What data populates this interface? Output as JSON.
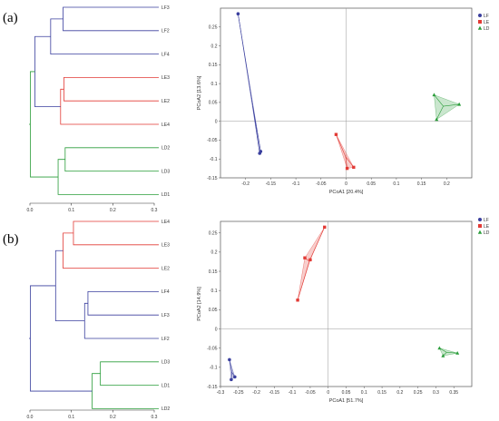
{
  "panels": [
    {
      "label": "(a)",
      "dendrogram": {
        "ticks": [
          "0.0",
          "0.1",
          "0.2",
          "0.3"
        ],
        "tick_values": [
          0.0,
          0.1,
          0.2,
          0.3
        ],
        "leaves": [
          "LF3",
          "LF2",
          "LF4",
          "LE3",
          "LE2",
          "LE4",
          "LD2",
          "LD3",
          "LD1"
        ],
        "merges": [
          {
            "a": "LF3",
            "b": "LF2",
            "h": 0.08,
            "group": "LF",
            "id": "F1"
          },
          {
            "a": "F1",
            "b": "LF4",
            "h": 0.05,
            "group": "LF",
            "id": "F2"
          },
          {
            "a": "LE3",
            "b": "LE2",
            "h": 0.082,
            "group": "LE",
            "id": "E1"
          },
          {
            "a": "E1",
            "b": "LE4",
            "h": 0.074,
            "group": "LE",
            "id": "E2"
          },
          {
            "a": "LD2",
            "b": "LD3",
            "h": 0.085,
            "group": "LD",
            "id": "D1"
          },
          {
            "a": "D1",
            "b": "LD1",
            "h": 0.068,
            "group": "LD",
            "id": "D2"
          },
          {
            "a": "F2",
            "b": "E2",
            "h": 0.012,
            "group": "LF",
            "id": "FE"
          },
          {
            "a": "FE",
            "b": "D2",
            "h": 0.001,
            "group": "LD",
            "id": "ALL"
          }
        ]
      },
      "chart_data": {
        "type": "scatter",
        "xlabel": "PCoA1 [20.4%]",
        "ylabel": "PCoA2 [13.6%]",
        "xlim": [
          -0.25,
          0.25
        ],
        "ylim": [
          -0.15,
          0.3
        ],
        "xticks": [
          -0.2,
          -0.15,
          -0.1,
          -0.05,
          0,
          0.05,
          0.1,
          0.15,
          0.2
        ],
        "xtick_labels": [
          "-0.2",
          "-0.15",
          "-0.1",
          "-0.05",
          "0",
          "0.05",
          "0.1",
          "0.15",
          "0.2"
        ],
        "yticks": [
          -0.15,
          -0.1,
          -0.05,
          0,
          0.05,
          0.1,
          0.15,
          0.2,
          0.25
        ],
        "ytick_labels": [
          "-0.15",
          "-0.1",
          "-0.05",
          "0",
          "0.05",
          "0.1",
          "0.15",
          "0.2",
          "0.25"
        ],
        "grid": false,
        "legend_placement": "top-right",
        "series": [
          {
            "name": "LF",
            "marker": "circle",
            "color": "#3a3f9e",
            "points": [
              [
                -0.215,
                0.285
              ],
              [
                -0.172,
                -0.085
              ],
              [
                -0.17,
                -0.08
              ]
            ]
          },
          {
            "name": "LE",
            "marker": "square",
            "color": "#e23a35",
            "points": [
              [
                -0.02,
                -0.035
              ],
              [
                0.002,
                -0.125
              ],
              [
                0.015,
                -0.122
              ]
            ]
          },
          {
            "name": "LD",
            "marker": "triangle",
            "color": "#2a9d3a",
            "points": [
              [
                0.175,
                0.07
              ],
              [
                0.225,
                0.045
              ],
              [
                0.18,
                0.005
              ]
            ]
          }
        ]
      }
    },
    {
      "label": "(b)",
      "dendrogram": {
        "ticks": [
          "0.0",
          "0.1",
          "0.2",
          "0.3"
        ],
        "tick_values": [
          0.0,
          0.1,
          0.2,
          0.3
        ],
        "leaves": [
          "LE4",
          "LE3",
          "LE2",
          "LF4",
          "LF3",
          "LF2",
          "LD3",
          "LD1",
          "LD2"
        ],
        "merges": [
          {
            "a": "LE4",
            "b": "LE3",
            "h": 0.105,
            "group": "LE",
            "id": "E1"
          },
          {
            "a": "E1",
            "b": "LE2",
            "h": 0.08,
            "group": "LE",
            "id": "E2"
          },
          {
            "a": "LF4",
            "b": "LF3",
            "h": 0.14,
            "group": "LF",
            "id": "F1"
          },
          {
            "a": "F1",
            "b": "LF2",
            "h": 0.132,
            "group": "LF",
            "id": "F2"
          },
          {
            "a": "LD3",
            "b": "LD1",
            "h": 0.17,
            "group": "LD",
            "id": "D1"
          },
          {
            "a": "D1",
            "b": "LD2",
            "h": 0.15,
            "group": "LD",
            "id": "D2"
          },
          {
            "a": "E2",
            "b": "F2",
            "h": 0.062,
            "group": "LF",
            "id": "EF"
          },
          {
            "a": "EF",
            "b": "D2",
            "h": 0.001,
            "group": "LF",
            "id": "ALL"
          }
        ]
      },
      "chart_data": {
        "type": "scatter",
        "xlabel": "PCoA1 [51.7%]",
        "ylabel": "PCoA2 [14.9%]",
        "xlim": [
          -0.3,
          0.4
        ],
        "ylim": [
          -0.15,
          0.28
        ],
        "xticks": [
          -0.3,
          -0.25,
          -0.2,
          -0.15,
          -0.1,
          -0.05,
          0,
          0.05,
          0.1,
          0.15,
          0.2,
          0.25,
          0.3,
          0.35
        ],
        "xtick_labels": [
          "-0.3",
          "-0.25",
          "-0.2",
          "-0.15",
          "-0.1",
          "-0.05",
          "0",
          "0.05",
          "0.1",
          "0.15",
          "0.2",
          "0.25",
          "0.3",
          "0.35"
        ],
        "yticks": [
          -0.15,
          -0.1,
          -0.05,
          0,
          0.05,
          0.1,
          0.15,
          0.2,
          0.25
        ],
        "ytick_labels": [
          "-0.15",
          "-0.1",
          "-0.05",
          "0",
          "0.05",
          "0.1",
          "0.15",
          "0.2",
          "0.25"
        ],
        "grid": false,
        "legend_placement": "top-right",
        "series": [
          {
            "name": "LF",
            "marker": "circle",
            "color": "#3a3f9e",
            "points": [
              [
                -0.275,
                -0.08
              ],
              [
                -0.27,
                -0.132
              ],
              [
                -0.26,
                -0.125
              ]
            ]
          },
          {
            "name": "LE",
            "marker": "square",
            "color": "#e23a35",
            "points": [
              [
                -0.085,
                0.075
              ],
              [
                -0.065,
                0.185
              ],
              [
                -0.05,
                0.18
              ],
              [
                -0.01,
                0.265
              ]
            ]
          },
          {
            "name": "LD",
            "marker": "triangle",
            "color": "#2a9d3a",
            "points": [
              [
                0.31,
                -0.05
              ],
              [
                0.32,
                -0.07
              ],
              [
                0.36,
                -0.063
              ]
            ]
          }
        ]
      }
    }
  ],
  "group_colors": {
    "LF": "#3a3f9e",
    "LE": "#e23a35",
    "LD": "#2a9d3a"
  }
}
